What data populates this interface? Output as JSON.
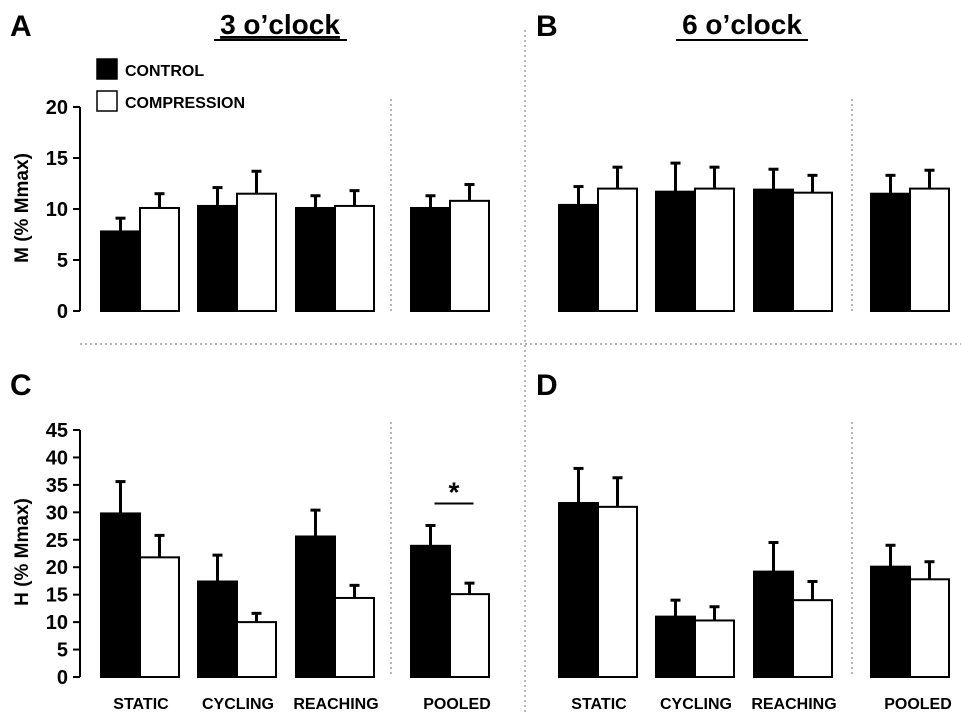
{
  "colors": {
    "control": "#000000",
    "compression": "#ffffff",
    "stroke": "#000000",
    "divider": "#888888"
  },
  "legend": [
    {
      "label": "CONTROL",
      "color": "#000000"
    },
    {
      "label": "COMPRESSION",
      "color": "#ffffff"
    }
  ],
  "columns": {
    "left_title": "3 o’clock",
    "right_title": "6 o’clock"
  },
  "row_labels": {
    "top_ylabel": "M (% Mmax)",
    "bottom_ylabel": "H (% Mmax)"
  },
  "category_labels": [
    "STATIC",
    "CYCLING",
    "REACHING",
    "POOLED"
  ],
  "chart_data": [
    {
      "type": "bar",
      "panel": "A",
      "title": "3 o’clock",
      "ylabel": "M (% Mmax)",
      "ylim": [
        0,
        20
      ],
      "yticks": [
        0,
        5,
        10,
        15,
        20
      ],
      "categories": [
        "STATIC",
        "CYCLING",
        "REACHING",
        "POOLED"
      ],
      "series": [
        {
          "name": "CONTROL",
          "values": [
            7.8,
            10.3,
            10.1,
            10.1
          ],
          "errors": [
            1.3,
            1.8,
            1.2,
            1.2
          ]
        },
        {
          "name": "COMPRESSION",
          "values": [
            10.1,
            11.5,
            10.3,
            10.8
          ],
          "errors": [
            1.4,
            2.2,
            1.5,
            1.6
          ]
        }
      ],
      "annotations": []
    },
    {
      "type": "bar",
      "panel": "B",
      "title": "6 o’clock",
      "ylabel": "",
      "ylim": [
        0,
        20
      ],
      "yticks": [],
      "categories": [
        "STATIC",
        "CYCLING",
        "REACHING",
        "POOLED"
      ],
      "series": [
        {
          "name": "CONTROL",
          "values": [
            10.4,
            11.7,
            11.9,
            11.5
          ],
          "errors": [
            1.8,
            2.8,
            2.0,
            1.8
          ]
        },
        {
          "name": "COMPRESSION",
          "values": [
            12.0,
            12.0,
            11.6,
            12.0
          ],
          "errors": [
            2.1,
            2.1,
            1.7,
            1.8
          ]
        }
      ],
      "annotations": []
    },
    {
      "type": "bar",
      "panel": "C",
      "title": "",
      "ylabel": "H (% Mmax)",
      "ylim": [
        0,
        45
      ],
      "yticks": [
        0,
        5,
        10,
        15,
        20,
        25,
        30,
        35,
        40,
        45
      ],
      "categories": [
        "STATIC",
        "CYCLING",
        "REACHING",
        "POOLED"
      ],
      "series": [
        {
          "name": "CONTROL",
          "values": [
            29.8,
            17.4,
            25.6,
            23.9
          ],
          "errors": [
            5.8,
            4.8,
            4.8,
            3.7
          ]
        },
        {
          "name": "COMPRESSION",
          "values": [
            21.8,
            10.0,
            14.4,
            15.1
          ],
          "errors": [
            4.0,
            1.6,
            2.3,
            2.0
          ]
        }
      ],
      "annotations": [
        {
          "text": "*",
          "category": "POOLED"
        }
      ]
    },
    {
      "type": "bar",
      "panel": "D",
      "title": "",
      "ylabel": "",
      "ylim": [
        0,
        45
      ],
      "yticks": [],
      "categories": [
        "STATIC",
        "CYCLING",
        "REACHING",
        "POOLED"
      ],
      "series": [
        {
          "name": "CONTROL",
          "values": [
            31.7,
            11.0,
            19.2,
            20.1
          ],
          "errors": [
            6.3,
            3.0,
            5.3,
            3.9
          ]
        },
        {
          "name": "COMPRESSION",
          "values": [
            31.0,
            10.3,
            14.0,
            17.8
          ],
          "errors": [
            5.3,
            2.5,
            3.4,
            3.2
          ]
        }
      ],
      "annotations": []
    }
  ]
}
